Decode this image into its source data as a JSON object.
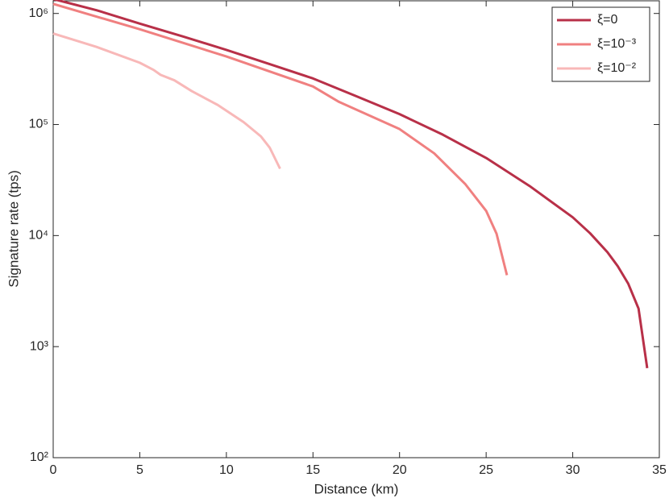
{
  "chart_data": {
    "type": "line",
    "x_label": "Distance (km)",
    "y_label": "Signature rate (tps)",
    "xlim": [
      0,
      35
    ],
    "xticks": [
      0,
      5,
      10,
      15,
      20,
      25,
      30,
      35
    ],
    "ylim": [
      100,
      1300000
    ],
    "yticks": [
      {
        "value": 100,
        "label": "10²"
      },
      {
        "value": 1000,
        "label": "10³"
      },
      {
        "value": 10000,
        "label": "10⁴"
      },
      {
        "value": 100000,
        "label": "10⁵"
      },
      {
        "value": 1000000,
        "label": "10⁶"
      }
    ],
    "y_scale": "log",
    "grid": false,
    "legend": "top-right",
    "series": [
      {
        "name": "ξ=0",
        "color": "#b83048",
        "x": [
          0,
          2.5,
          5,
          7.5,
          10,
          12.5,
          15,
          17.5,
          20,
          22.5,
          25,
          27.5,
          30,
          31,
          32,
          32.6,
          33.2,
          33.8,
          34.3
        ],
        "values": [
          1350000,
          1070000,
          810000,
          620000,
          470000,
          350000,
          260000,
          180000,
          124000,
          81000,
          50000,
          28000,
          14600,
          10500,
          7100,
          5300,
          3700,
          2200,
          640
        ]
      },
      {
        "name": "ξ=10⁻³",
        "color": "#f08080",
        "x": [
          0,
          5,
          10,
          15,
          16.5,
          20,
          22,
          23.8,
          25,
          25.6,
          26.2
        ],
        "values": [
          1220000,
          720000,
          410000,
          220000,
          160000,
          91000,
          55000,
          29000,
          16700,
          10400,
          4400
        ]
      },
      {
        "name": "ξ=10⁻²",
        "color": "#f8b8b8",
        "x": [
          0,
          2.5,
          5,
          5.8,
          6.2,
          7,
          8,
          9.5,
          11,
          12,
          12.5,
          13.1
        ],
        "values": [
          660000,
          500000,
          360000,
          310000,
          280000,
          250000,
          200000,
          150000,
          105000,
          78000,
          62000,
          40000
        ]
      }
    ]
  }
}
